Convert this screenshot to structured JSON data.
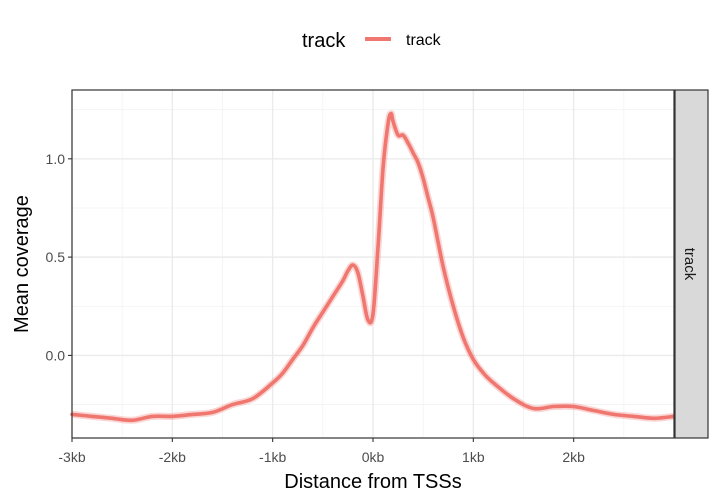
{
  "chart_data": {
    "type": "line",
    "title": "",
    "xlabel": "Distance from TSSs",
    "ylabel": "Mean coverage",
    "xlim": [
      -3000,
      3000
    ],
    "ylim": [
      -0.42,
      1.35
    ],
    "grid": true,
    "legend": {
      "title": "track",
      "position": "top",
      "entries": [
        "track"
      ]
    },
    "facet_label": "track",
    "x_ticks": [
      {
        "value": -3000,
        "label": "-3kb"
      },
      {
        "value": -2000,
        "label": "-2kb"
      },
      {
        "value": -1000,
        "label": "-1kb"
      },
      {
        "value": 0,
        "label": "0kb"
      },
      {
        "value": 1000,
        "label": "1kb"
      },
      {
        "value": 2000,
        "label": "2kb"
      }
    ],
    "y_ticks": [
      {
        "value": 0.0,
        "label": "0.0"
      },
      {
        "value": 0.5,
        "label": "0.5"
      },
      {
        "value": 1.0,
        "label": "1.0"
      }
    ],
    "series": [
      {
        "name": "track",
        "color": "#F07770",
        "x": [
          -3000,
          -2800,
          -2600,
          -2400,
          -2200,
          -2000,
          -1800,
          -1600,
          -1400,
          -1200,
          -1000,
          -900,
          -800,
          -700,
          -600,
          -500,
          -400,
          -300,
          -250,
          -200,
          -150,
          -100,
          -50,
          0,
          50,
          100,
          150,
          180,
          200,
          250,
          300,
          350,
          400,
          450,
          500,
          550,
          600,
          700,
          800,
          900,
          1000,
          1100,
          1200,
          1400,
          1600,
          1800,
          2000,
          2200,
          2400,
          2600,
          2800,
          3000
        ],
        "y": [
          -0.3,
          -0.31,
          -0.32,
          -0.33,
          -0.31,
          -0.31,
          -0.3,
          -0.29,
          -0.25,
          -0.22,
          -0.14,
          -0.09,
          -0.02,
          0.05,
          0.14,
          0.22,
          0.3,
          0.38,
          0.43,
          0.46,
          0.42,
          0.3,
          0.18,
          0.21,
          0.55,
          0.95,
          1.18,
          1.23,
          1.19,
          1.12,
          1.12,
          1.08,
          1.03,
          0.98,
          0.9,
          0.8,
          0.7,
          0.45,
          0.25,
          0.09,
          -0.02,
          -0.09,
          -0.14,
          -0.22,
          -0.27,
          -0.26,
          -0.26,
          -0.28,
          -0.3,
          -0.31,
          -0.32,
          -0.31
        ]
      }
    ]
  }
}
